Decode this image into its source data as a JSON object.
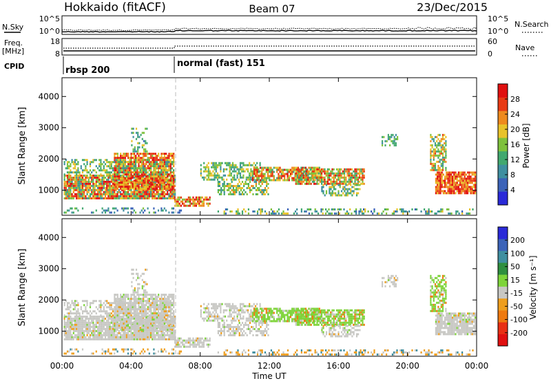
{
  "header": {
    "station": "Hokkaido (fitACF)",
    "beam": "Beam 07",
    "date": "23/Dec/2015"
  },
  "meta_panels": {
    "nsky": {
      "label": "N.Sky",
      "ticks": [
        "10^5",
        "10^0"
      ]
    },
    "nsearch": {
      "label": "N.Search",
      "ticks": [
        "10^5",
        "10^0"
      ]
    },
    "freq": {
      "label_line1": "Freq.",
      "label_line2": "[MHz]",
      "ticks": [
        "18",
        "8"
      ]
    },
    "nave": {
      "label": "Nave",
      "ticks": [
        "60",
        "0"
      ]
    },
    "cpid": {
      "label": "CPID",
      "segments": [
        "rbsp 200",
        "normal (fast) 151"
      ]
    }
  },
  "colors": {
    "power_scale": [
      "#2a2ad8",
      "#3b63b8",
      "#3f8fa0",
      "#42a86f",
      "#7ec13c",
      "#e8c22a",
      "#ee8a1e",
      "#e83a14",
      "#e01010"
    ],
    "velocity_scale": [
      "#2a2ad8",
      "#3b63b8",
      "#3f8fa0",
      "#2f8f3f",
      "#7ed43a",
      "#c8c8c4",
      "#ee9e1e",
      "#ee7a10",
      "#e83014",
      "#e01010"
    ]
  },
  "chart_data": [
    {
      "type": "heatmap",
      "title": "",
      "xlabel": "Time UT",
      "ylabel": "Slant Range [km]",
      "x_ticks": [
        "00:00",
        "04:00",
        "08:00",
        "12:00",
        "16:00",
        "20:00",
        "00:00"
      ],
      "y_ticks": [
        "1000",
        "2000",
        "3000",
        "4000"
      ],
      "ylim": [
        200,
        4600
      ],
      "colorbar": {
        "label": "Power [dB]",
        "ticks": [
          "28",
          "24",
          "20",
          "16",
          "12",
          "8",
          "4"
        ],
        "range": [
          0,
          30
        ]
      }
    },
    {
      "type": "heatmap",
      "title": "",
      "xlabel": "Time UT",
      "ylabel": "Slant Range [km]",
      "x_ticks": [
        "00:00",
        "04:00",
        "08:00",
        "12:00",
        "16:00",
        "20:00",
        "00:00"
      ],
      "y_ticks": [
        "1000",
        "2000",
        "3000",
        "4000"
      ],
      "ylim": [
        200,
        4600
      ],
      "colorbar": {
        "label": "Velocity [m s⁻¹]",
        "ticks": [
          "200",
          "100",
          "50",
          "15",
          "-15",
          "-50",
          "-100",
          "-200"
        ]
      }
    }
  ]
}
